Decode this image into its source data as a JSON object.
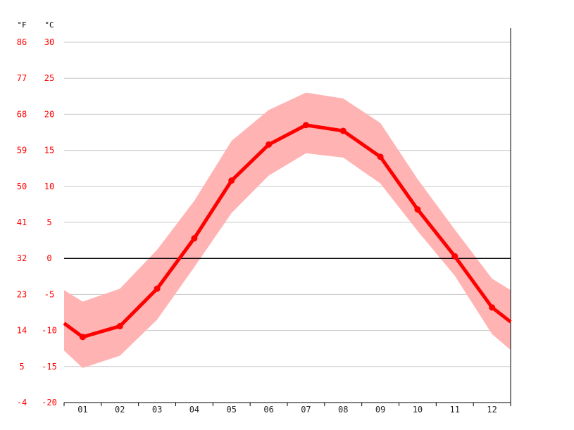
{
  "chart_data": {
    "type": "line",
    "title": "",
    "xlabel": "",
    "ylabel": "",
    "unit_labels": {
      "fahrenheit": "°F",
      "celsius": "°C"
    },
    "categories": [
      "01",
      "02",
      "03",
      "04",
      "05",
      "06",
      "07",
      "08",
      "09",
      "10",
      "11",
      "12"
    ],
    "series": [
      {
        "values": [
          -10.9,
          -9.4,
          -4.2,
          2.8,
          10.8,
          15.8,
          18.5,
          17.7,
          14.1,
          6.8,
          0.3,
          -6.8
        ]
      }
    ],
    "band": {
      "upper": [
        -6,
        -4.2,
        1.2,
        8.0,
        16.3,
        20.6,
        23.0,
        22.2,
        18.8,
        11.0,
        4.0,
        -2.8
      ],
      "lower": [
        -15.2,
        -13.5,
        -8.5,
        -1.2,
        6.3,
        11.5,
        14.6,
        14.0,
        10.4,
        3.8,
        -2.4,
        -10.5
      ]
    },
    "edge_values": {
      "left": {
        "mean": -9.0,
        "upper": -4.4,
        "lower": -12.8
      },
      "right": {
        "mean": -8.8,
        "upper": -4.4,
        "lower": -12.7
      }
    },
    "y_ticks_celsius": [
      "30",
      "25",
      "20",
      "15",
      "10",
      "5",
      "0",
      "-5",
      "-10",
      "-15",
      "-20"
    ],
    "y_ticks_fahrenheit": [
      "86",
      "77",
      "68",
      "59",
      "50",
      "41",
      "32",
      "23",
      "14",
      "5",
      "-4"
    ],
    "ylim": [
      -20,
      30
    ],
    "grid": true,
    "colors": {
      "line": "#ff0000",
      "band": "#ffb3b3",
      "grid": "#c8c8c8",
      "zero_line": "#000000",
      "axis": "#000000",
      "tick_text": "#ff0000"
    }
  }
}
